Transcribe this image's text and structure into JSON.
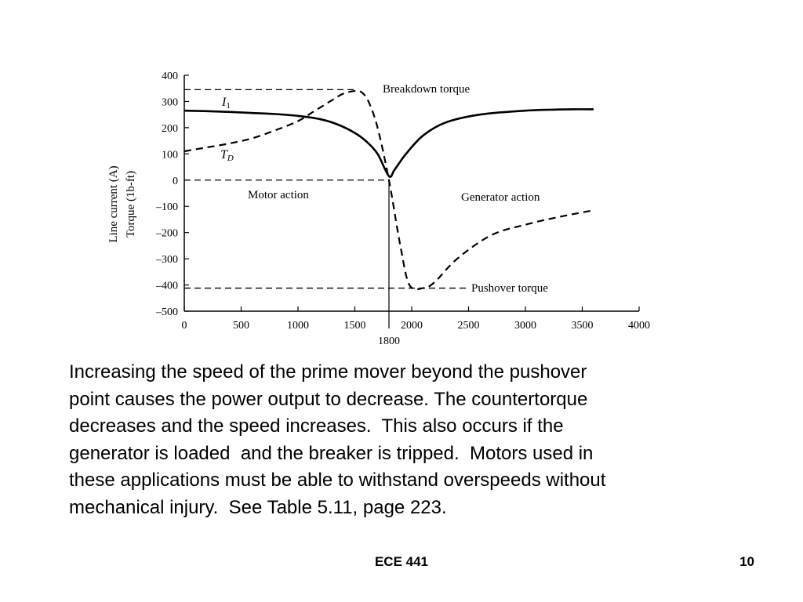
{
  "chart_data": {
    "type": "line",
    "xlim": [
      0,
      4000
    ],
    "ylim": [
      -500,
      400
    ],
    "x_ticks": [
      0,
      500,
      1000,
      1500,
      2000,
      2500,
      3000,
      3500,
      4000
    ],
    "x_tick_labels": [
      "0",
      "500",
      "1000",
      "1500",
      "2000",
      "2500",
      "3000",
      "3500",
      "4000"
    ],
    "y_ticks": [
      400,
      300,
      200,
      100,
      0,
      -100,
      -200,
      -300,
      -400,
      -500
    ],
    "y_tick_labels": [
      "400",
      "300",
      "200",
      "100",
      "0",
      "–100",
      "–200",
      "–300",
      "–400",
      "–500"
    ],
    "ylabel_lines": [
      "Line current (A)",
      "Torque (1b-ft)"
    ],
    "xlabel": "",
    "grid": false,
    "marker_x": 1800,
    "marker_label": "1800",
    "series": [
      {
        "name": "I1",
        "style": "solid",
        "x": [
          0,
          200,
          400,
          600,
          800,
          1000,
          1200,
          1350,
          1500,
          1600,
          1700,
          1800,
          1850,
          1950,
          2100,
          2300,
          2600,
          3000,
          3400,
          3600
        ],
        "y": [
          265,
          263,
          260,
          256,
          252,
          245,
          232,
          212,
          180,
          148,
          100,
          15,
          40,
          100,
          170,
          220,
          250,
          265,
          270,
          270
        ]
      },
      {
        "name": "TD",
        "style": "dashed",
        "x": [
          0,
          200,
          400,
          600,
          800,
          1000,
          1150,
          1300,
          1400,
          1500,
          1560,
          1620,
          1700,
          1800,
          1900,
          1980,
          2100,
          2200,
          2400,
          2700,
          3000,
          3300,
          3600
        ],
        "y": [
          110,
          125,
          140,
          160,
          190,
          225,
          265,
          305,
          330,
          340,
          335,
          300,
          200,
          0,
          -250,
          -400,
          -412,
          -390,
          -300,
          -210,
          -170,
          -140,
          -115
        ]
      }
    ],
    "reference_lines": [
      {
        "y": 345,
        "x_end": 1520,
        "label": "Breakdown torque"
      },
      {
        "y": 0,
        "x_end": 1800,
        "label": ""
      },
      {
        "y": -412,
        "x_end": 2480,
        "label": "Pushover torque"
      }
    ],
    "annotations": {
      "i1_label": "I",
      "i1_sub": "1",
      "td_label": "T",
      "td_sub": "D",
      "motor_action": "Motor action",
      "generator_action": "Generator action",
      "breakdown": "Breakdown torque",
      "pushover": "Pushover torque"
    }
  },
  "slide": {
    "body": "Increasing the speed of the prime mover beyond the pushover\npoint causes the power output to decrease. The countertorque\ndecreases and the speed increases.  This also occurs if the\ngenerator is loaded  and the breaker is tripped.  Motors used in\nthese applications must be able to withstand overspeeds without\nmechanical injury.  See Table 5.11, page 223.",
    "footer_center": "ECE 441",
    "page_number": "10"
  }
}
